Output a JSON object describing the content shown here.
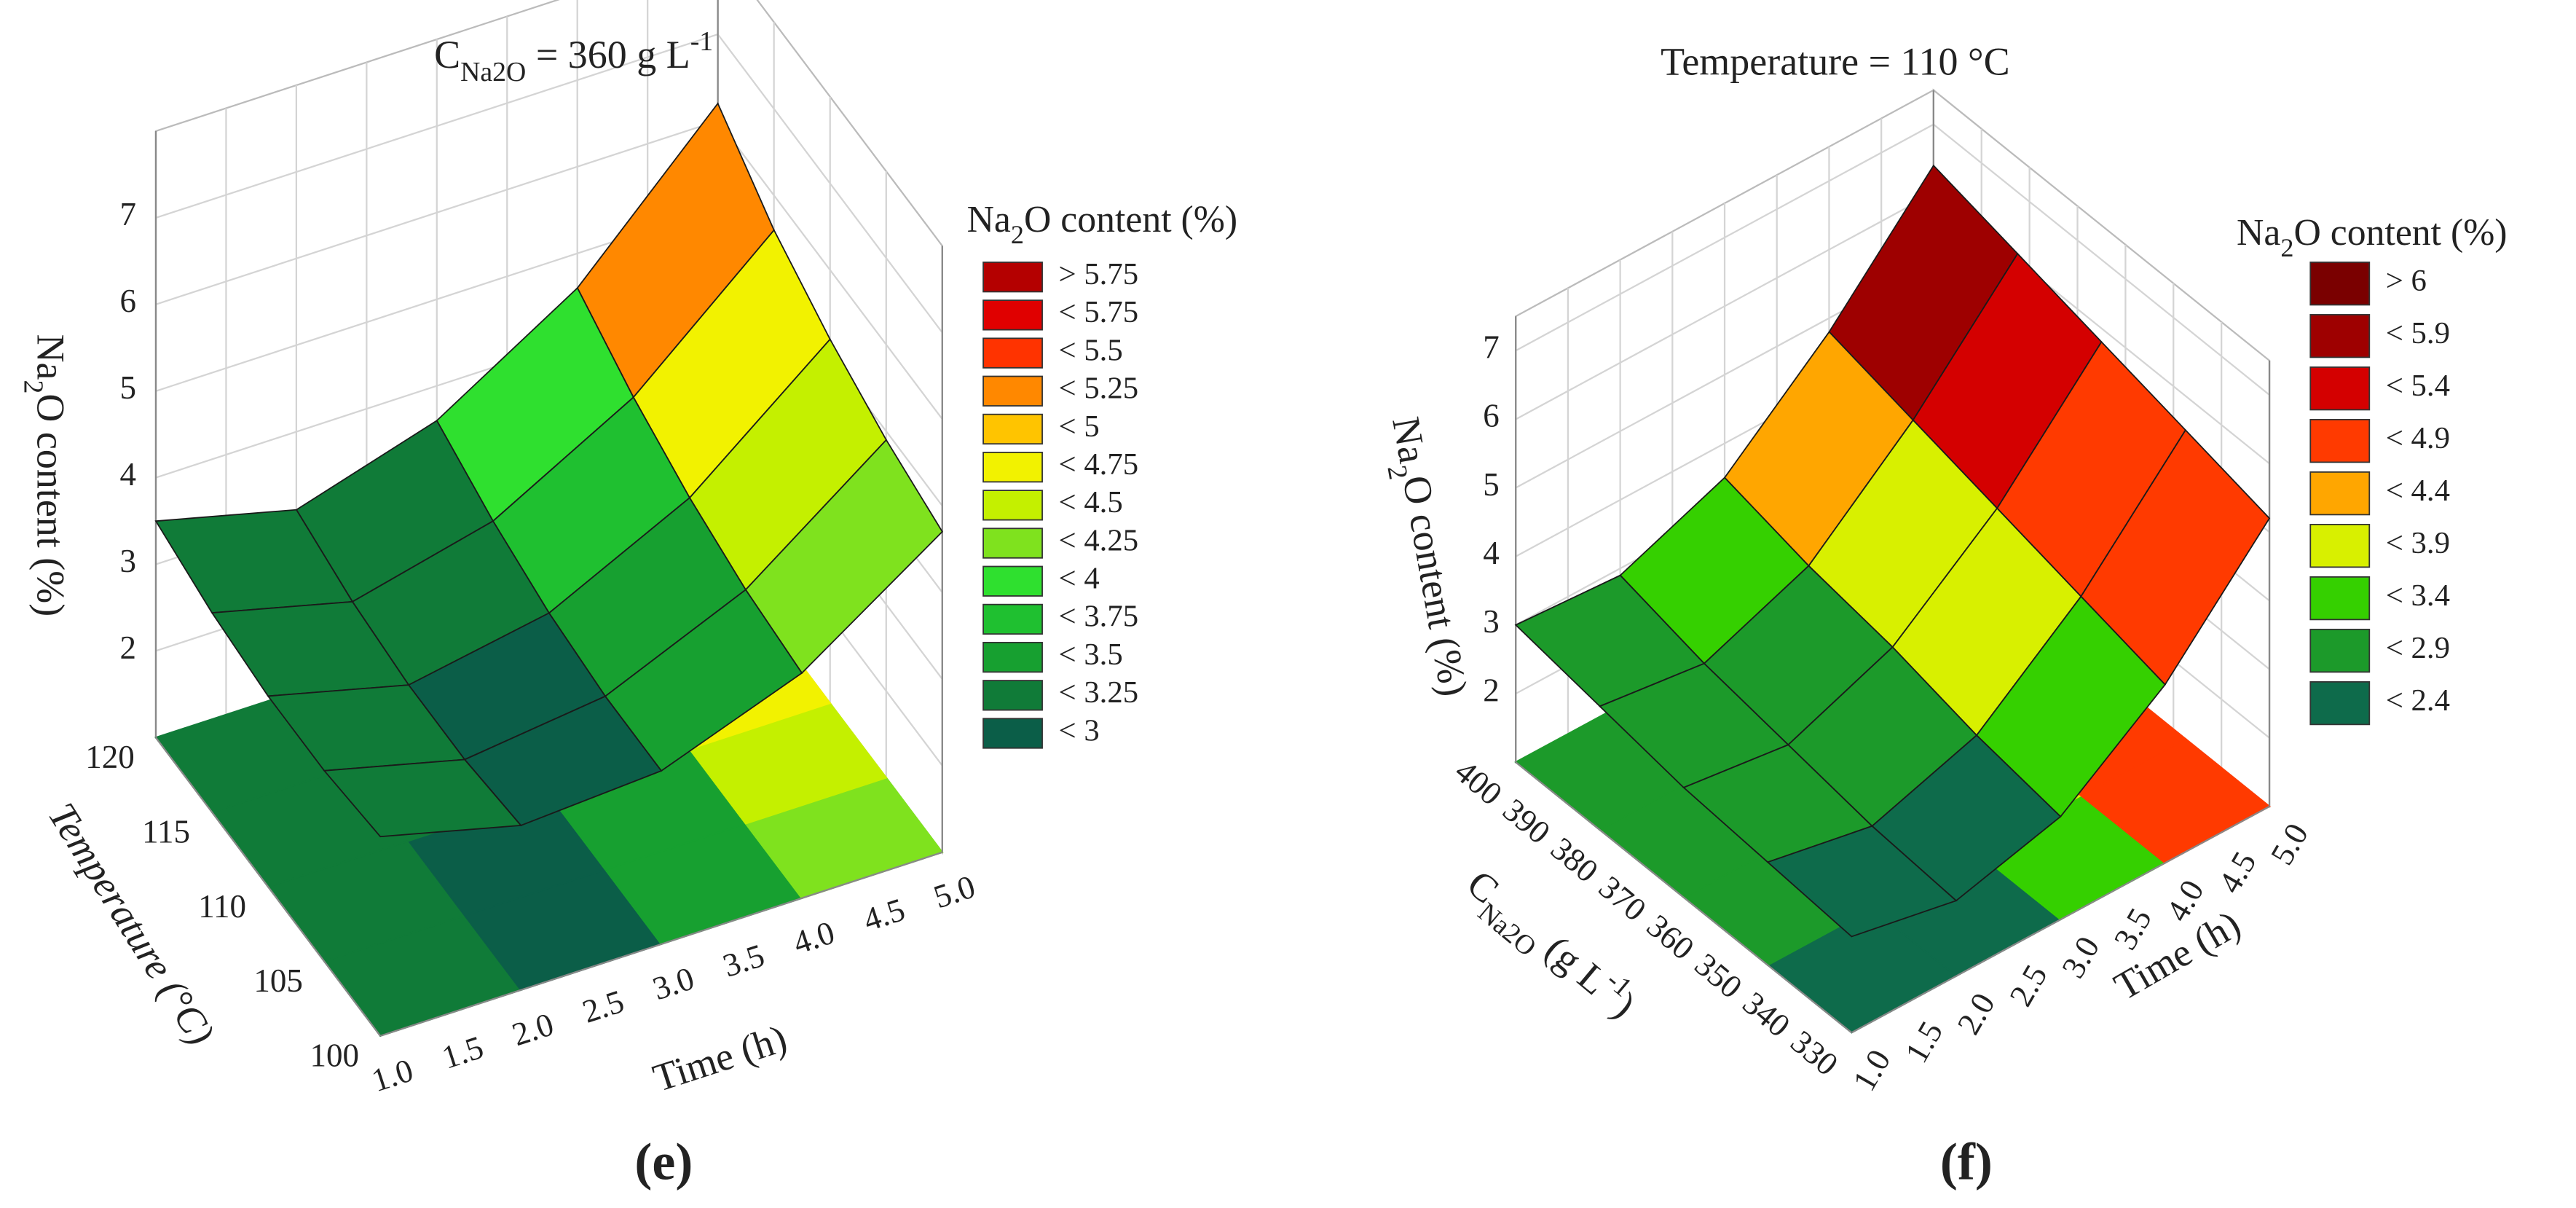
{
  "chart_data": [
    {
      "type": "surface3d",
      "panel": "(e)",
      "title": [
        "C",
        "Na2O",
        " = 360 g L",
        "-1"
      ],
      "xlabel": "Time (h)",
      "ylabel": "Temperature (°C)",
      "zlabel": [
        "Na",
        "2",
        "O content (%)"
      ],
      "legend_title": [
        "Na",
        "2",
        "O  content (%)"
      ],
      "x": [
        1,
        2,
        3,
        4,
        5
      ],
      "y": [
        100,
        105,
        110,
        115,
        120
      ],
      "z": [
        [
          3.3,
          2.9,
          3.0,
          3.6,
          4.7
        ],
        [
          3.2,
          2.8,
          3.0,
          3.7,
          4.9
        ],
        [
          3.2,
          2.8,
          3.1,
          3.9,
          5.2
        ],
        [
          3.3,
          2.9,
          3.3,
          4.2,
          5.6
        ],
        [
          3.5,
          3.1,
          3.6,
          4.6,
          6.2
        ]
      ],
      "xlim": [
        1,
        5
      ],
      "ylim": [
        100,
        120
      ],
      "zlim": [
        1,
        8
      ],
      "xticks": [
        {
          "value": 1,
          "label": "1.0"
        },
        1.5,
        {
          "value": 2,
          "label": "2.0"
        },
        2.5,
        {
          "value": 3,
          "label": "3.0"
        },
        3.5,
        {
          "value": 4,
          "label": "4.0"
        },
        4.5,
        {
          "value": 5,
          "label": "5.0"
        }
      ],
      "yticks": [
        100,
        105,
        110,
        115,
        120
      ],
      "zticks": [
        2,
        3,
        4,
        5,
        6,
        7
      ],
      "levels": [
        {
          "value": 5.75,
          "label": "> 5.75",
          "color": "#b40000"
        },
        {
          "value": 5.75,
          "label": "< 5.75",
          "color": "#e00000"
        },
        {
          "value": 5.5,
          "label": "< 5.5",
          "color": "#ff3300"
        },
        {
          "value": 5.25,
          "label": "< 5.25",
          "color": "#ff8800"
        },
        {
          "value": 5,
          "label": "< 5",
          "color": "#ffc400"
        },
        {
          "value": 4.75,
          "label": "< 4.75",
          "color": "#f2f200"
        },
        {
          "value": 4.5,
          "label": "< 4.5",
          "color": "#c4f000"
        },
        {
          "value": 4.25,
          "label": "< 4.25",
          "color": "#7fe21e"
        },
        {
          "value": 4,
          "label": "< 4",
          "color": "#2fe02f"
        },
        {
          "value": 3.75,
          "label": "< 3.75",
          "color": "#1fc030"
        },
        {
          "value": 3.5,
          "label": "< 3.5",
          "color": "#17a030"
        },
        {
          "value": 3.25,
          "label": "< 3.25",
          "color": "#107b38"
        },
        {
          "value": 3,
          "label": "< 3",
          "color": "#0b5e48"
        }
      ]
    },
    {
      "type": "surface3d",
      "panel": "(f)",
      "title": "Temperature = 110 °C",
      "xlabel": "Time (h)",
      "ylabel": [
        "C",
        "Na2O",
        " (g L",
        "-1",
        ")"
      ],
      "zlabel": [
        "Na",
        "2",
        "O content (%)"
      ],
      "legend_title": [
        "Na",
        "2",
        "O content (%)"
      ],
      "x": [
        1,
        2,
        3,
        4,
        5
      ],
      "y": [
        330,
        347.5,
        365,
        382.5,
        400
      ],
      "z": [
        [
          2.4,
          2.1,
          2.5,
          3.6,
          5.2
        ],
        [
          2.5,
          2.2,
          2.7,
          3.9,
          5.5
        ],
        [
          2.6,
          2.4,
          3.0,
          4.2,
          5.8
        ],
        [
          2.8,
          2.6,
          3.2,
          4.5,
          6.1
        ],
        [
          3.0,
          2.9,
          3.5,
          4.8,
          6.4
        ]
      ],
      "xlim": [
        1,
        5
      ],
      "ylim": [
        330,
        400
      ],
      "zlim": [
        1,
        7.5
      ],
      "xticks": [
        {
          "value": 1,
          "label": "1.0"
        },
        1.5,
        {
          "value": 2,
          "label": "2.0"
        },
        2.5,
        {
          "value": 3,
          "label": "3.0"
        },
        3.5,
        {
          "value": 4,
          "label": "4.0"
        },
        4.5,
        {
          "value": 5,
          "label": "5.0"
        }
      ],
      "yticks": [
        330,
        340,
        350,
        360,
        370,
        380,
        390,
        400
      ],
      "zticks": [
        2,
        3,
        4,
        5,
        6,
        7
      ],
      "levels": [
        {
          "value": 6,
          "label": "> 6",
          "color": "#7a0000"
        },
        {
          "value": 5.9,
          "label": "< 5.9",
          "color": "#9e0000"
        },
        {
          "value": 5.4,
          "label": "< 5.4",
          "color": "#d40000"
        },
        {
          "value": 4.9,
          "label": "< 4.9",
          "color": "#ff3a00"
        },
        {
          "value": 4.4,
          "label": "< 4.4",
          "color": "#ffa600"
        },
        {
          "value": 3.9,
          "label": "< 3.9",
          "color": "#d8f000"
        },
        {
          "value": 3.4,
          "label": "< 3.4",
          "color": "#35d000"
        },
        {
          "value": 2.9,
          "label": "< 2.9",
          "color": "#1c9a2a"
        },
        {
          "value": 2.4,
          "label": "< 2.4",
          "color": "#0e6b4b"
        }
      ]
    }
  ]
}
